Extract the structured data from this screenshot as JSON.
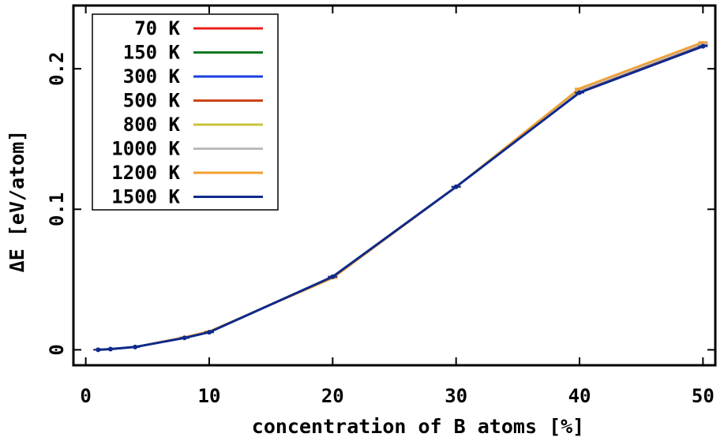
{
  "chart_data": {
    "type": "line",
    "xlabel": "concentration of B atoms [%]",
    "ylabel": "ΔE [eV/atom]",
    "xlim": [
      -1,
      51
    ],
    "ylim": [
      -0.011,
      0.245
    ],
    "x_ticks": [
      0,
      10,
      20,
      30,
      40,
      50
    ],
    "y_ticks": [
      0,
      0.1,
      0.2
    ],
    "y_tick_labels": [
      "0",
      "0.1",
      "0.2"
    ],
    "grid": false,
    "legend": "top-left",
    "x": [
      1,
      2,
      4,
      8,
      10,
      20,
      30,
      40,
      50
    ],
    "series": [
      {
        "name": "70 K",
        "color": "#e8201a",
        "values": [
          0.0,
          0.0005,
          0.002,
          0.0085,
          0.0125,
          0.052,
          0.116,
          0.184,
          0.217
        ]
      },
      {
        "name": "150 K",
        "color": "#0e7a22",
        "values": [
          0.0,
          0.0005,
          0.002,
          0.0085,
          0.0125,
          0.052,
          0.116,
          0.184,
          0.217
        ]
      },
      {
        "name": "300 K",
        "color": "#1a3fe0",
        "values": [
          0.0,
          0.0005,
          0.002,
          0.0085,
          0.0125,
          0.052,
          0.116,
          0.184,
          0.217
        ]
      },
      {
        "name": "500 K",
        "color": "#cc4418",
        "values": [
          0.0,
          0.0005,
          0.002,
          0.0085,
          0.0125,
          0.052,
          0.116,
          0.184,
          0.2175
        ]
      },
      {
        "name": "800 K",
        "color": "#c8c43a",
        "values": [
          0.0,
          0.0005,
          0.002,
          0.0087,
          0.0128,
          0.052,
          0.116,
          0.185,
          0.218
        ]
      },
      {
        "name": "1000 K",
        "color": "#bbbbbb",
        "values": [
          0.0,
          0.0005,
          0.002,
          0.0087,
          0.0128,
          0.052,
          0.116,
          0.185,
          0.218
        ]
      },
      {
        "name": "1200 K",
        "color": "#f0a030",
        "values": [
          0.0,
          0.0005,
          0.002,
          0.009,
          0.0132,
          0.051,
          0.116,
          0.186,
          0.219
        ]
      },
      {
        "name": "1500 K",
        "color": "#0e2a8c",
        "values": [
          0.0,
          0.0005,
          0.002,
          0.0085,
          0.0125,
          0.052,
          0.116,
          0.183,
          0.216
        ]
      }
    ]
  }
}
